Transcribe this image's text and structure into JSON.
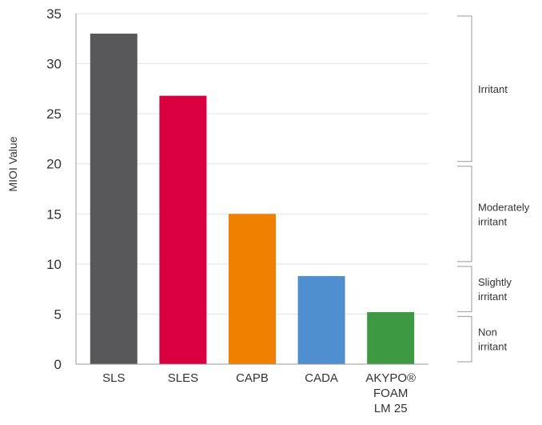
{
  "chart_data": {
    "type": "bar",
    "ylabel": "MIOI Value",
    "xlabel": "",
    "ylim": [
      0,
      35
    ],
    "yticks": [
      0,
      5,
      10,
      15,
      20,
      25,
      30,
      35
    ],
    "grid": true,
    "categories": [
      "SLS",
      "SLES",
      "CAPB",
      "CADA",
      "AKYPO® FOAM LM 25"
    ],
    "category_lines": [
      [
        "SLS"
      ],
      [
        "SLES"
      ],
      [
        "CAPB"
      ],
      [
        "CADA"
      ],
      [
        "AKYPO®",
        "FOAM",
        "LM 25"
      ]
    ],
    "values": [
      33,
      26.8,
      15,
      8.8,
      5.2
    ],
    "colors": [
      "#58585a",
      "#d9003f",
      "#f08000",
      "#4f8fd0",
      "#3d9942"
    ],
    "bands": [
      {
        "label_lines": [
          "Irritant"
        ],
        "from": 20,
        "to": 35
      },
      {
        "label_lines": [
          "Moderately",
          "irritant"
        ],
        "from": 10,
        "to": 20
      },
      {
        "label_lines": [
          "Slightly",
          "irritant"
        ],
        "from": 5,
        "to": 10
      },
      {
        "label_lines": [
          "Non",
          "irritant"
        ],
        "from": 0,
        "to": 5
      }
    ],
    "axis_color": "#9a9a9a",
    "grid_color": "#e2e2e2",
    "band_color": "#9a9a9a"
  }
}
